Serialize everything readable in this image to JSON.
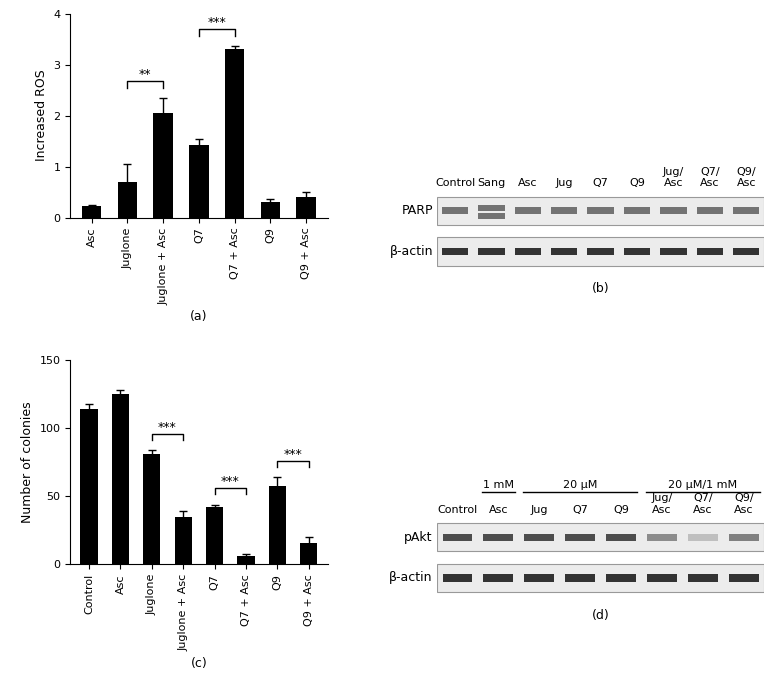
{
  "chart_data": [
    {
      "type": "bar",
      "y_label": "Increased ROS",
      "x_label": "(a)",
      "categories": [
        "Asc",
        "Juglone",
        "Juglone + Asc",
        "Q7",
        "Q7 + Asc",
        "Q9",
        "Q9 + Asc"
      ],
      "values": [
        0.23,
        0.7,
        2.05,
        1.42,
        3.3,
        0.3,
        0.4
      ],
      "errors": [
        0.02,
        0.35,
        0.3,
        0.13,
        0.07,
        0.06,
        0.1
      ],
      "color": "#000000",
      "ylim": [
        0,
        4
      ],
      "yticks": [
        0,
        1,
        2,
        3,
        4
      ],
      "grid": false,
      "annotations": [
        {
          "from": 1,
          "to": 2,
          "text": "**"
        },
        {
          "from": 3,
          "to": 4,
          "text": "***"
        }
      ]
    },
    {
      "type": "bar",
      "y_label": "Number of colonies",
      "x_label": "(c)",
      "categories": [
        "Control",
        "Asc",
        "Juglone",
        "Juglone + Asc",
        "Q7",
        "Q7 + Asc",
        "Q9",
        "Q9 + Asc"
      ],
      "values": [
        114,
        125,
        81,
        35,
        42,
        6,
        58,
        16
      ],
      "errors": [
        4,
        3,
        3,
        4,
        2,
        1.5,
        6,
        4
      ],
      "color": "#000000",
      "ylim": [
        0,
        150
      ],
      "yticks": [
        0,
        50,
        100,
        150
      ],
      "grid": false,
      "annotations": [
        {
          "from": 2,
          "to": 3,
          "text": "***"
        },
        {
          "from": 4,
          "to": 5,
          "text": "***"
        },
        {
          "from": 6,
          "to": 7,
          "text": "***"
        }
      ]
    }
  ],
  "blots": [
    {
      "panel": "(b)",
      "lanes": [
        "Control",
        "Sang",
        "Asc",
        "Jug",
        "Q7",
        "Q9",
        "Jug/\nAsc",
        "Q7/\nAsc",
        "Q9/\nAsc"
      ],
      "rows": [
        "PARP",
        "β-actin"
      ]
    },
    {
      "panel": "(d)",
      "lanes": [
        "Control",
        "Asc",
        "Jug",
        "Q7",
        "Q9",
        "Jug/\nAsc",
        "Q7/\nAsc",
        "Q9/\nAsc"
      ],
      "rows": [
        "pAkt",
        "β-actin"
      ],
      "groups": [
        {
          "label": "1 mM",
          "lanes": [
            1,
            1
          ]
        },
        {
          "label": "20 μM",
          "lanes": [
            2,
            4
          ]
        },
        {
          "label": "20 μM/1 mM",
          "lanes": [
            5,
            7
          ]
        }
      ]
    }
  ]
}
